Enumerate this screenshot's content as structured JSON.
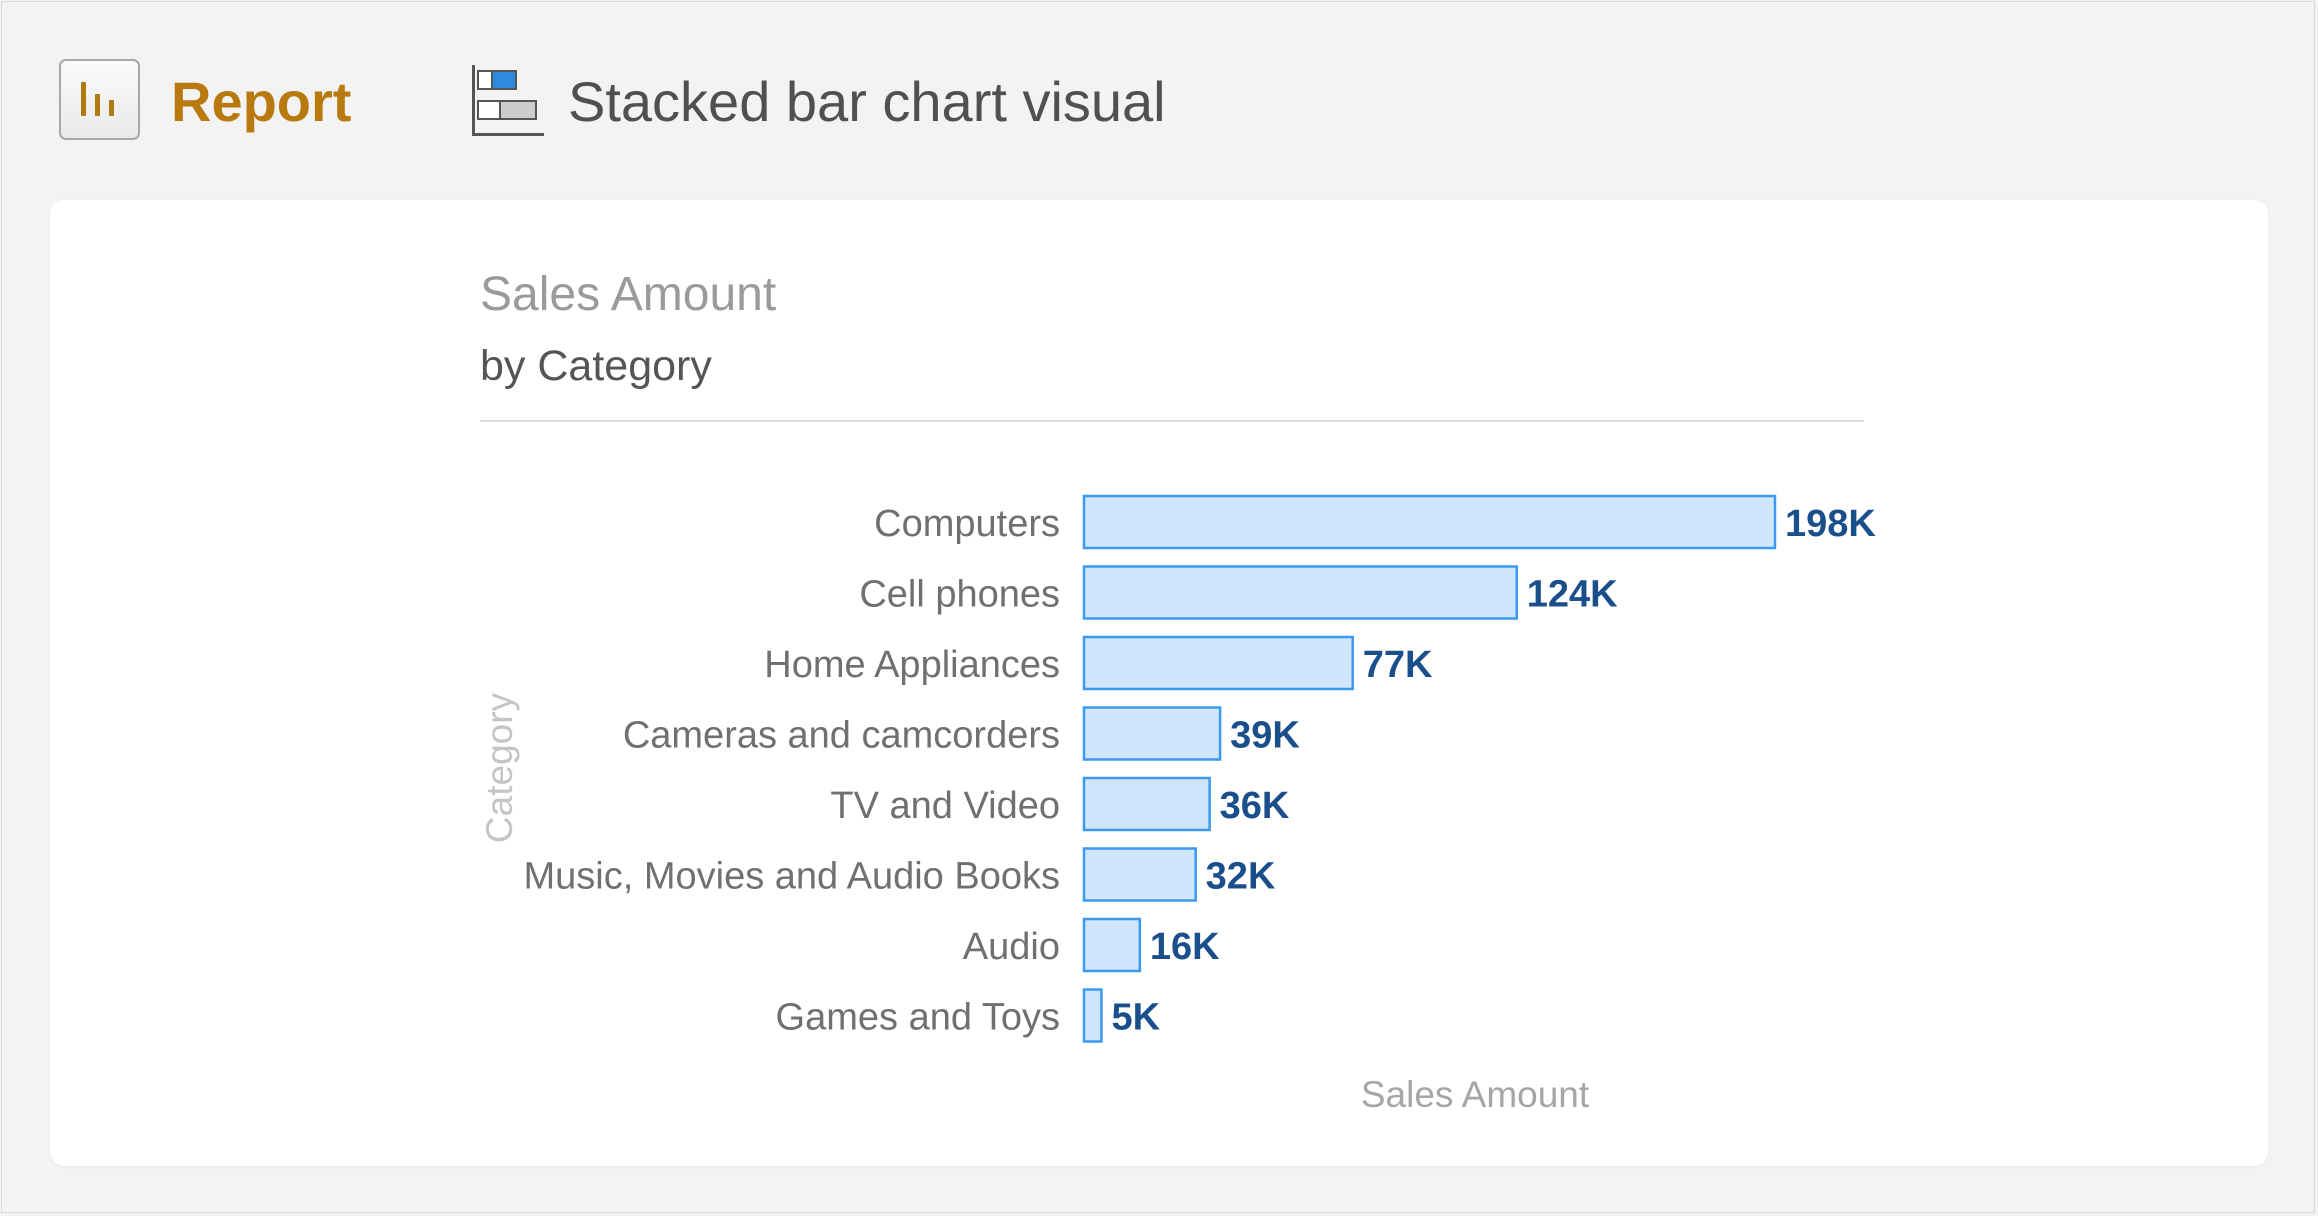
{
  "header": {
    "report_label": "Report",
    "report_icon": "report-bar-icon",
    "visual_label": "Stacked bar chart visual",
    "visual_icon": "stacked-bar-chart-icon"
  },
  "colors": {
    "report_accent": "#b8790f",
    "bar_fill": "#cfe6fd",
    "bar_stroke": "#3b99f0",
    "data_label": "#1b4f8c"
  },
  "chart_data": {
    "type": "bar",
    "orientation": "horizontal",
    "title": "Sales Amount",
    "subtitle": "by Category",
    "xlabel": "Sales Amount",
    "ylabel": "Category",
    "categories": [
      "Computers",
      "Cell phones",
      "Home Appliances",
      "Cameras and camcorders",
      "TV and Video",
      "Music, Movies and Audio Books",
      "Audio",
      "Games and Toys"
    ],
    "values": [
      198,
      124,
      77,
      39,
      36,
      32,
      16,
      5
    ],
    "data_labels": [
      "198K",
      "124K",
      "77K",
      "39K",
      "36K",
      "32K",
      "16K",
      "5K"
    ],
    "units": "thousands",
    "xlim": [
      0,
      198
    ],
    "grid": false,
    "legend": "none"
  }
}
